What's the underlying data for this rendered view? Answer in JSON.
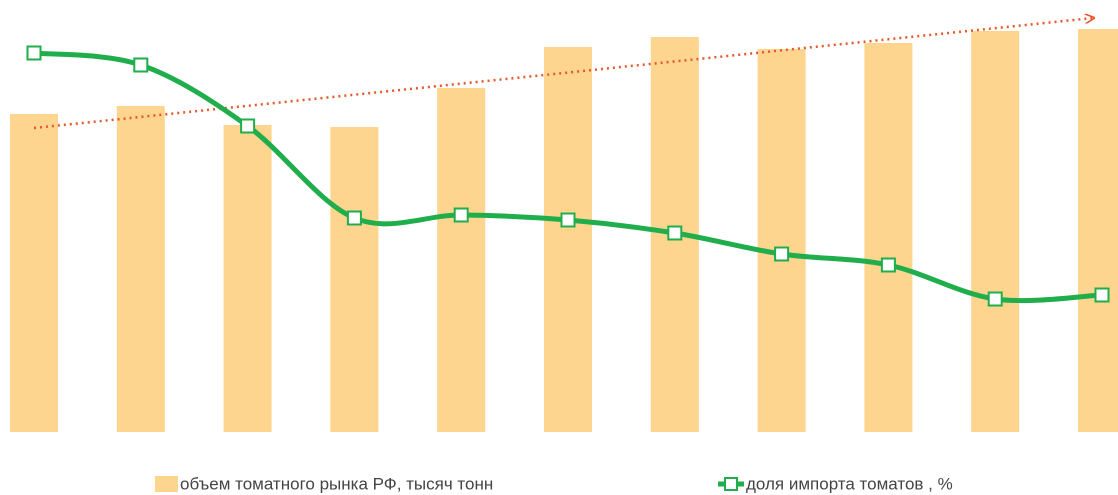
{
  "chart_data": {
    "type": "bar-line",
    "categories": [
      null,
      null,
      null,
      null,
      null,
      null,
      null,
      null,
      null,
      null,
      null
    ],
    "series": [
      {
        "name": "объем томатного рынка РФ, тысяч тонн",
        "type": "bar",
        "color": "#fdd58e",
        "values": [
          318,
          326,
          307,
          305,
          344,
          385,
          395,
          383,
          389,
          401,
          403
        ]
      },
      {
        "name": "доля импорта томатов , %",
        "type": "line",
        "axis": "y2",
        "color": "#1fae4b",
        "values": [
          379,
          367,
          306,
          214,
          217,
          212,
          199,
          178,
          167,
          133,
          137
        ]
      }
    ],
    "ylim": [
      0,
      432
    ],
    "y2lim": [
      0,
      432
    ],
    "legend": "bottom"
  }
}
